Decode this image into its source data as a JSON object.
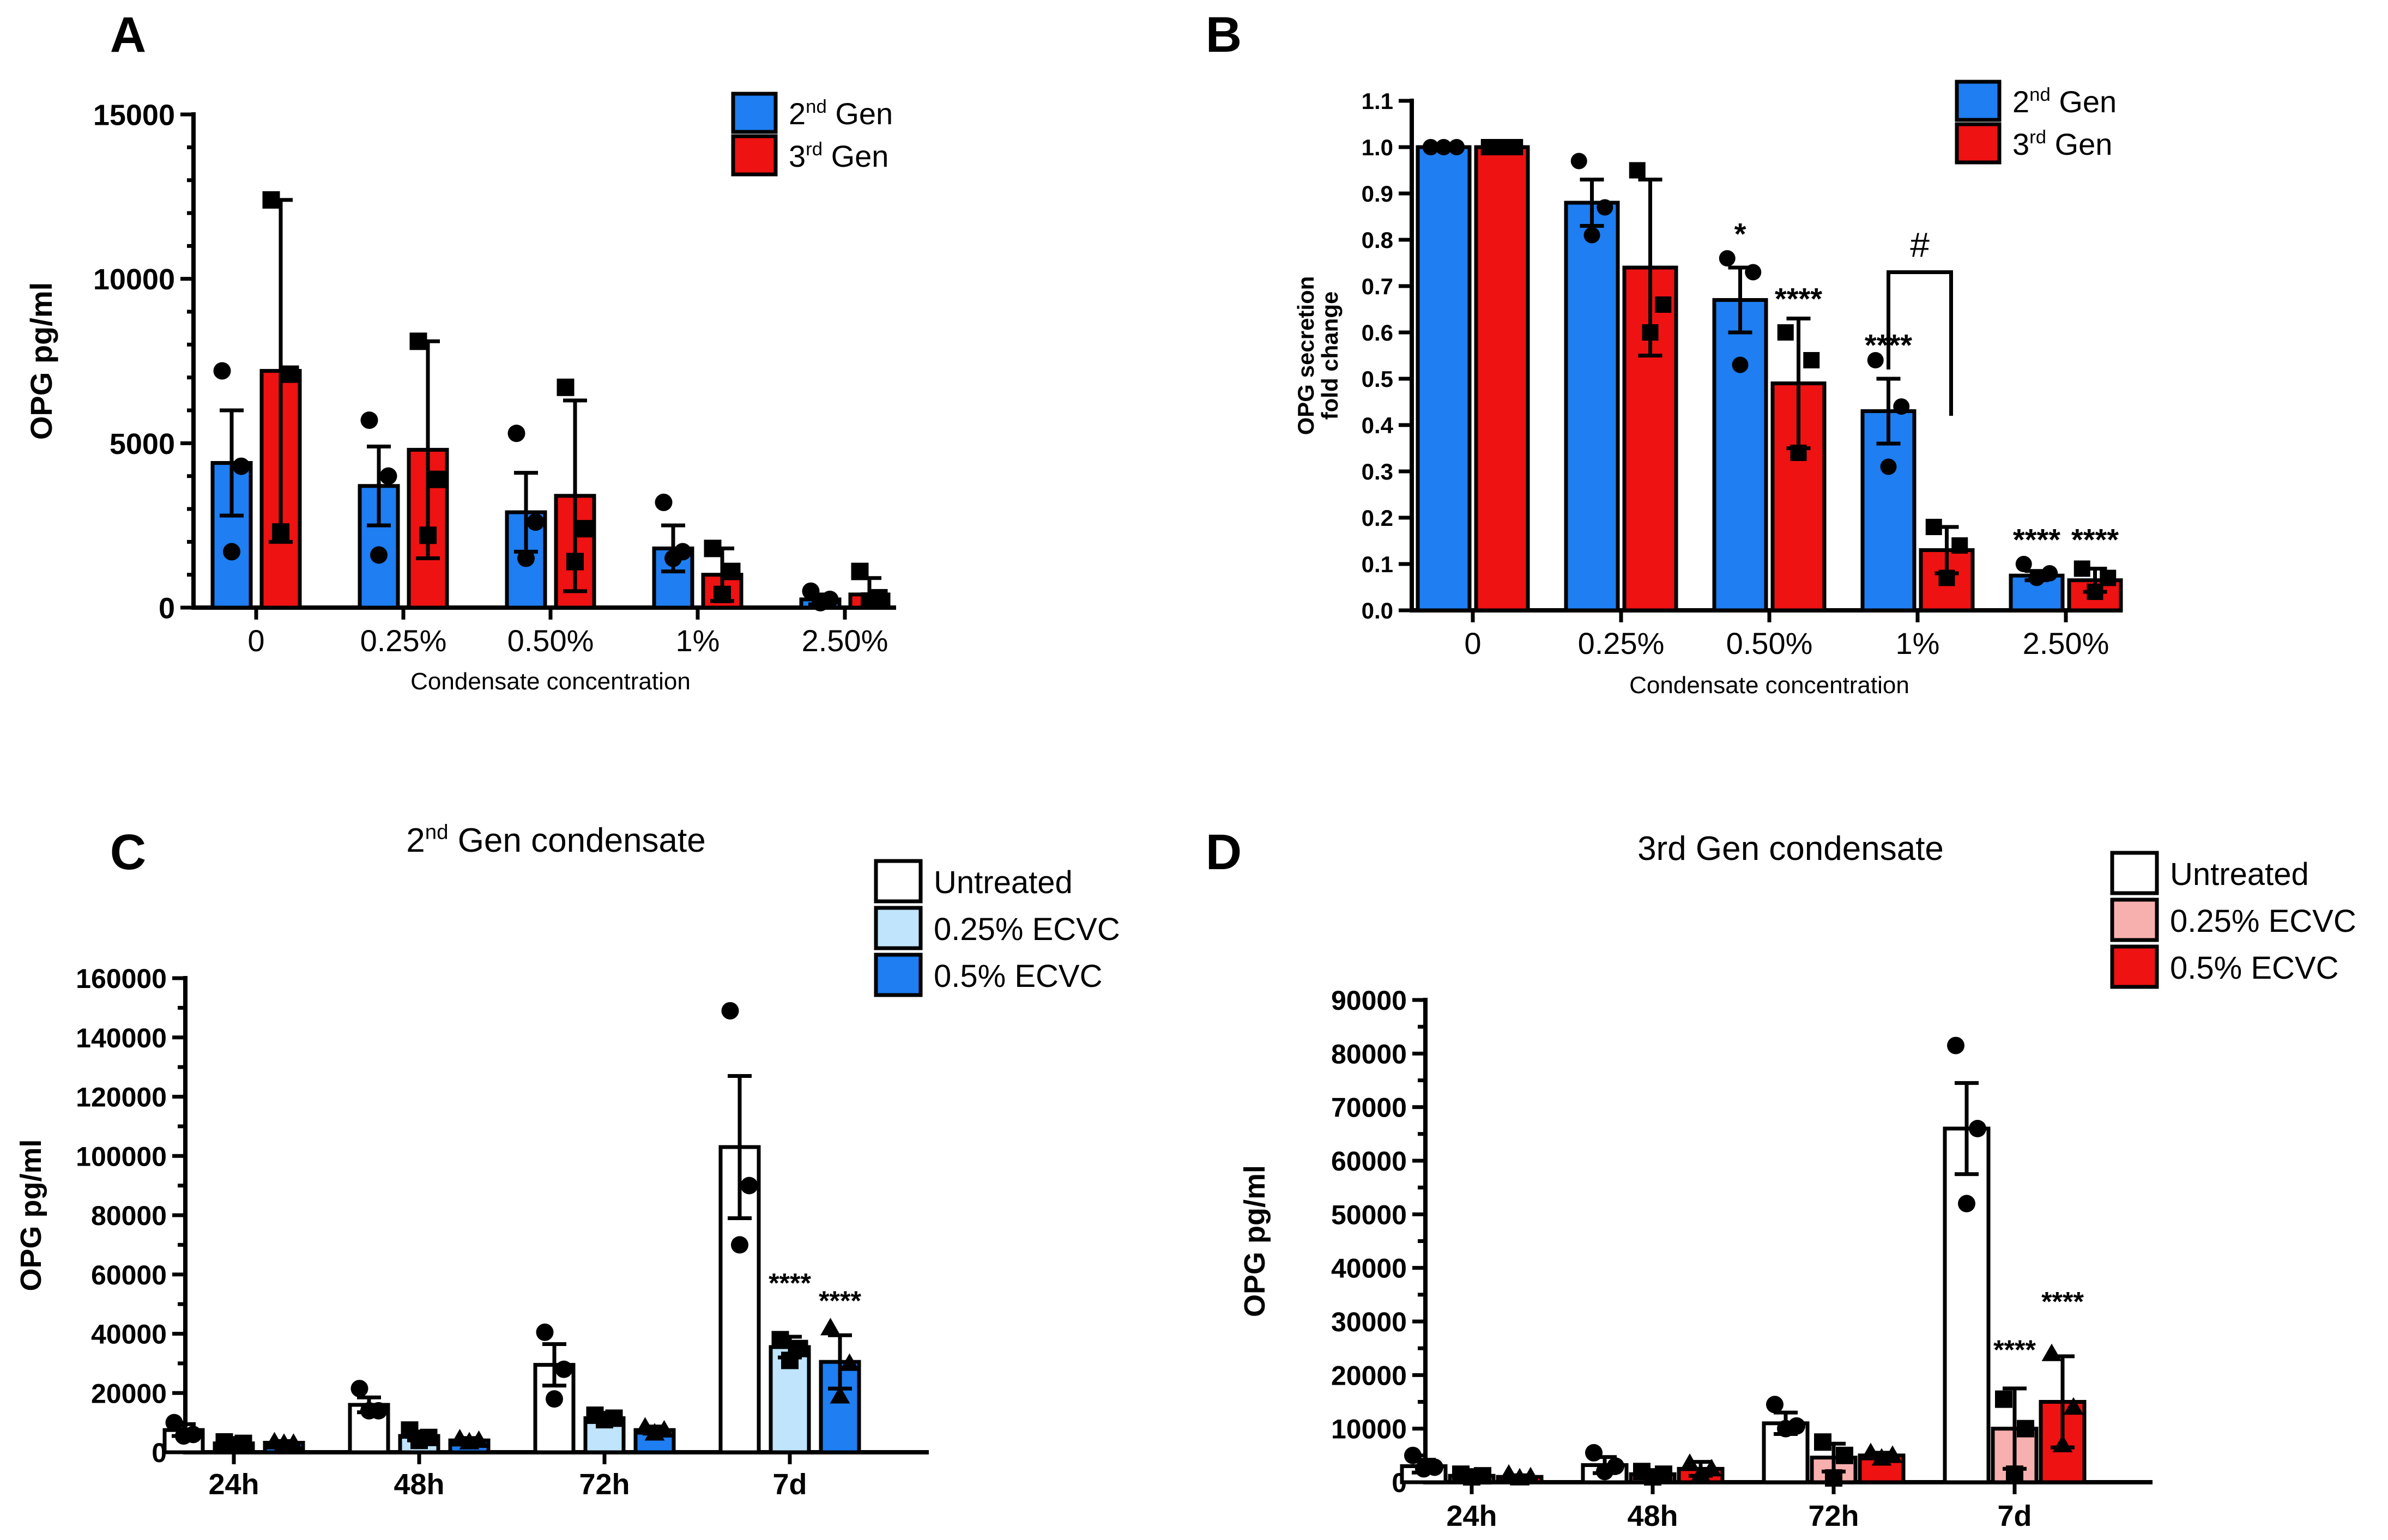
{
  "colors": {
    "blue": "#1e7ef2",
    "red": "#ee1212",
    "white": "#ffffff",
    "light_blue": "#bfe4fb",
    "light_red": "#f8b0ae"
  },
  "chart_data": [
    {
      "panel": "A",
      "type": "bar",
      "ylabel": "OPG pg/ml",
      "xlabel": "Condensate concentration",
      "categories": [
        "0",
        "0.25%",
        "0.50%",
        "1%",
        "2.50%"
      ],
      "ylim": [
        0,
        15000
      ],
      "yticks": [
        "0",
        "5000",
        "10000",
        "15000"
      ],
      "legend": [
        {
          "prefix": "2",
          "sup": "nd",
          "suffix": " Gen"
        },
        {
          "prefix": "3",
          "sup": "rd",
          "suffix": " Gen"
        }
      ],
      "series": [
        {
          "color": "blue",
          "marker": "circle",
          "values": [
            4400,
            3700,
            2900,
            1800,
            250
          ],
          "errors": [
            1600,
            1200,
            1200,
            700,
            150
          ],
          "points": [
            [
              7200,
              4300,
              1700
            ],
            [
              5700,
              4000,
              1600
            ],
            [
              5300,
              2600,
              1500
            ],
            [
              3200,
              1700,
              1500
            ],
            [
              500,
              250,
              150
            ]
          ]
        },
        {
          "color": "red",
          "marker": "square",
          "values": [
            7200,
            4800,
            3400,
            1000,
            400
          ],
          "errors": [
            5200,
            3300,
            2900,
            800,
            500
          ],
          "points": [
            [
              12400,
              7100,
              2300
            ],
            [
              8100,
              3900,
              2200
            ],
            [
              6700,
              2400,
              1400
            ],
            [
              1800,
              1100,
              400
            ],
            [
              1100,
              300,
              200
            ]
          ]
        }
      ],
      "annotations": []
    },
    {
      "panel": "B",
      "type": "bar",
      "ylabel": "OPG secretion fold change",
      "xlabel": "Condensate concentration",
      "categories": [
        "0",
        "0.25%",
        "0.50%",
        "1%",
        "2.50%"
      ],
      "ylim": [
        0,
        1.1
      ],
      "yticks": [
        "0.0",
        "0.1",
        "0.2",
        "0.3",
        "0.4",
        "0.5",
        "0.6",
        "0.7",
        "0.8",
        "0.9",
        "1.0",
        "1.1"
      ],
      "legend": [
        {
          "prefix": "2",
          "sup": "nd",
          "suffix": " Gen"
        },
        {
          "prefix": "3",
          "sup": "rd",
          "suffix": " Gen"
        }
      ],
      "series": [
        {
          "color": "blue",
          "marker": "circle",
          "values": [
            1.0,
            0.88,
            0.67,
            0.43,
            0.075
          ],
          "errors": [
            0,
            0.05,
            0.07,
            0.07,
            0.01
          ],
          "points": [
            [
              1.0,
              1.0,
              1.0
            ],
            [
              0.97,
              0.87,
              0.81
            ],
            [
              0.76,
              0.73,
              0.53
            ],
            [
              0.54,
              0.44,
              0.31
            ],
            [
              0.1,
              0.08,
              0.07
            ]
          ]
        },
        {
          "color": "red",
          "marker": "square",
          "values": [
            1.0,
            0.74,
            0.49,
            0.13,
            0.065
          ],
          "errors": [
            0,
            0.19,
            0.14,
            0.05,
            0.025
          ],
          "points": [
            [
              1.0,
              1.0,
              1.0
            ],
            [
              0.95,
              0.66,
              0.6
            ],
            [
              0.6,
              0.54,
              0.34
            ],
            [
              0.18,
              0.14,
              0.07
            ],
            [
              0.09,
              0.07,
              0.04
            ]
          ]
        }
      ],
      "annotations": [
        {
          "text": "*",
          "cat": 2,
          "series": 0,
          "y": 0.79
        },
        {
          "text": "****",
          "cat": 2,
          "series": 1,
          "y": 0.65
        },
        {
          "text": "****",
          "cat": 3,
          "series": 0,
          "y": 0.55
        },
        {
          "text": "****",
          "cat": 4,
          "series": 0,
          "y": 0.13
        },
        {
          "text": "****",
          "cat": 4,
          "series": 1,
          "y": 0.13
        }
      ],
      "bracket": {
        "text": "#",
        "cat": 3,
        "y_left": 0.52,
        "y_top": 0.73,
        "y_right": 0.42
      }
    },
    {
      "panel": "C",
      "type": "bar",
      "title": {
        "prefix": "2",
        "sup": "nd",
        "suffix": " Gen condensate"
      },
      "ylabel": "OPG pg/ml",
      "categories": [
        "24h",
        "48h",
        "72h",
        "7d"
      ],
      "ylim": [
        0,
        160000
      ],
      "yticks": [
        "0",
        "20000",
        "40000",
        "60000",
        "80000",
        "100000",
        "120000",
        "140000",
        "160000"
      ],
      "legend": [
        {
          "prefix": "Untreated",
          "sup": "",
          "suffix": ""
        },
        {
          "prefix": "0.25% ECVC",
          "sup": "",
          "suffix": ""
        },
        {
          "prefix": "0.5% ECVC",
          "sup": "",
          "suffix": ""
        }
      ],
      "series": [
        {
          "color": "white",
          "marker": "circle",
          "values": [
            7500,
            16000,
            29500,
            103000
          ],
          "errors": [
            2000,
            2500,
            7000,
            24000
          ],
          "points": [
            [
              10000,
              6000,
              5500
            ],
            [
              21500,
              14000,
              14000
            ],
            [
              40500,
              28000,
              18000
            ],
            [
              149000,
              90000,
              70000
            ]
          ]
        },
        {
          "color": "light_blue",
          "marker": "square",
          "values": [
            3000,
            5500,
            11500,
            35500
          ],
          "errors": [
            600,
            1500,
            1000,
            3500
          ],
          "points": [
            [
              3500,
              3000,
              2500
            ],
            [
              7500,
              5000,
              4000
            ],
            [
              12500,
              11500,
              11000
            ],
            [
              38000,
              35000,
              31000
            ]
          ]
        },
        {
          "color": "blue",
          "marker": "triangle",
          "values": [
            3200,
            4000,
            7500,
            30500
          ],
          "errors": [
            600,
            800,
            1200,
            9000
          ],
          "points": [
            [
              3500,
              3000,
              3000
            ],
            [
              4500,
              4000,
              3500
            ],
            [
              8500,
              7500,
              6500
            ],
            [
              42000,
              30000,
              19000
            ]
          ]
        }
      ],
      "annotations": [
        {
          "text": "****",
          "cat": 3,
          "series": 1,
          "y": 54000
        },
        {
          "text": "****",
          "cat": 3,
          "series": 2,
          "y": 48000
        }
      ]
    },
    {
      "panel": "D",
      "type": "bar",
      "title": {
        "prefix": "3rd Gen condensate",
        "sup": "",
        "suffix": ""
      },
      "ylabel": "OPG pg/ml",
      "categories": [
        "24h",
        "48h",
        "72h",
        "7d"
      ],
      "ylim": [
        0,
        90000
      ],
      "yticks": [
        "0",
        "10000",
        "20000",
        "30000",
        "40000",
        "50000",
        "60000",
        "70000",
        "80000",
        "90000"
      ],
      "legend": [
        {
          "prefix": "Untreated",
          "sup": "",
          "suffix": ""
        },
        {
          "prefix": "0.25% ECVC",
          "sup": "",
          "suffix": ""
        },
        {
          "prefix": "0.5% ECVC",
          "sup": "",
          "suffix": ""
        }
      ],
      "series": [
        {
          "color": "white",
          "marker": "circle",
          "values": [
            3000,
            3200,
            11000,
            66000
          ],
          "errors": [
            1200,
            1500,
            2000,
            8500
          ],
          "points": [
            [
              5000,
              2800,
              2500
            ],
            [
              5500,
              3000,
              2000
            ],
            [
              14500,
              10500,
              10000
            ],
            [
              81500,
              66000,
              52000
            ]
          ]
        },
        {
          "color": "light_red",
          "marker": "square",
          "values": [
            1200,
            1500,
            4600,
            10000
          ],
          "errors": [
            300,
            500,
            2600,
            7500
          ],
          "points": [
            [
              1500,
              1200,
              1000
            ],
            [
              2000,
              1500,
              1000
            ],
            [
              7500,
              5000,
              800
            ],
            [
              15500,
              10000,
              1500
            ]
          ]
        },
        {
          "color": "red",
          "marker": "triangle",
          "values": [
            1000,
            2500,
            5000,
            15000
          ],
          "errors": [
            300,
            1300,
            500,
            8500
          ],
          "points": [
            [
              1500,
              1000,
              800
            ],
            [
              3500,
              2500,
              1500
            ],
            [
              5500,
              5000,
              4500
            ],
            [
              24000,
              14000,
              7000
            ]
          ]
        }
      ],
      "annotations": [
        {
          "text": "****",
          "cat": 3,
          "series": 1,
          "y": 23000
        },
        {
          "text": "****",
          "cat": 3,
          "series": 2,
          "y": 32000
        }
      ]
    }
  ],
  "panel_labels": [
    "A",
    "B",
    "C",
    "D"
  ]
}
